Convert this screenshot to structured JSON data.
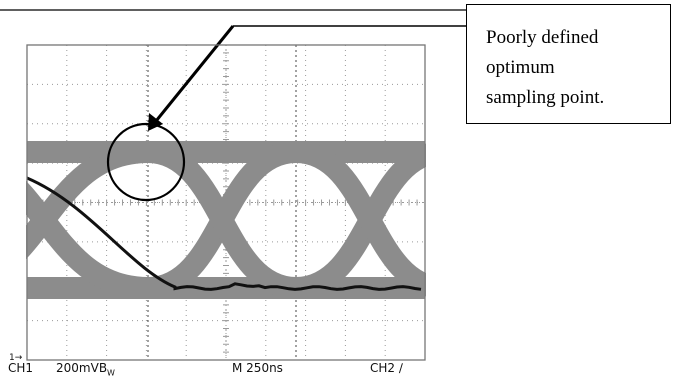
{
  "callout": {
    "lines": [
      "Poorly defined",
      "optimum",
      "sampling point."
    ]
  },
  "scope": {
    "channel": "CH1",
    "volts_per_div": "200mV",
    "bandwidth_mark": "B",
    "bandwidth_sub": "W",
    "timebase": "M 250ns",
    "trigger_source": "CH2",
    "trigger_slope_glyph": "∕",
    "ground_marker": "1→"
  },
  "colors": {
    "trace_eye": "#8c8c8c",
    "trace_highlight": "#111111",
    "graticule": "#9a9a9a"
  }
}
